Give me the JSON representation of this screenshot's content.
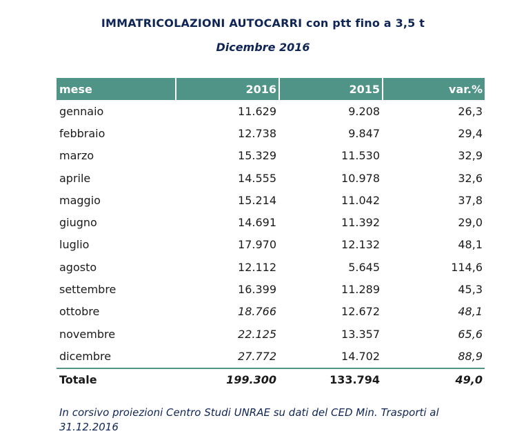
{
  "title": "IMMATRICOLAZIONI AUTOCARRI con ptt fino a 3,5 t",
  "subtitle": "Dicembre 2016",
  "table": {
    "headers": [
      "mese",
      "2016",
      "2015",
      "var.%"
    ],
    "rows": [
      {
        "mese": "gennaio",
        "y2016": "11.629",
        "y2015": "9.208",
        "var": "26,3",
        "estimated": false
      },
      {
        "mese": "febbraio",
        "y2016": "12.738",
        "y2015": "9.847",
        "var": "29,4",
        "estimated": false
      },
      {
        "mese": "marzo",
        "y2016": "15.329",
        "y2015": "11.530",
        "var": "32,9",
        "estimated": false
      },
      {
        "mese": "aprile",
        "y2016": "14.555",
        "y2015": "10.978",
        "var": "32,6",
        "estimated": false
      },
      {
        "mese": "maggio",
        "y2016": "15.214",
        "y2015": "11.042",
        "var": "37,8",
        "estimated": false
      },
      {
        "mese": "giugno",
        "y2016": "14.691",
        "y2015": "11.392",
        "var": "29,0",
        "estimated": false
      },
      {
        "mese": "luglio",
        "y2016": "17.970",
        "y2015": "12.132",
        "var": "48,1",
        "estimated": false
      },
      {
        "mese": "agosto",
        "y2016": "12.112",
        "y2015": "5.645",
        "var": "114,6",
        "estimated": false
      },
      {
        "mese": "settembre",
        "y2016": "16.399",
        "y2015": "11.289",
        "var": "45,3",
        "estimated": false
      },
      {
        "mese": "ottobre",
        "y2016": "18.766",
        "y2015": "12.672",
        "var": "48,1",
        "estimated": true
      },
      {
        "mese": "novembre",
        "y2016": "22.125",
        "y2015": "13.357",
        "var": "65,6",
        "estimated": true
      },
      {
        "mese": "dicembre",
        "y2016": "27.772",
        "y2015": "14.702",
        "var": "88,9",
        "estimated": true
      }
    ],
    "total": {
      "mese": "Totale",
      "y2016": "199.300",
      "y2015": "133.794",
      "var": "49,0"
    }
  },
  "note": "In corsivo proiezioni Centro Studi UNRAE su dati del CED Min. Trasporti al 31.12.2016",
  "colors": {
    "header_bg": "#4f9486",
    "title": "#0f2556"
  }
}
